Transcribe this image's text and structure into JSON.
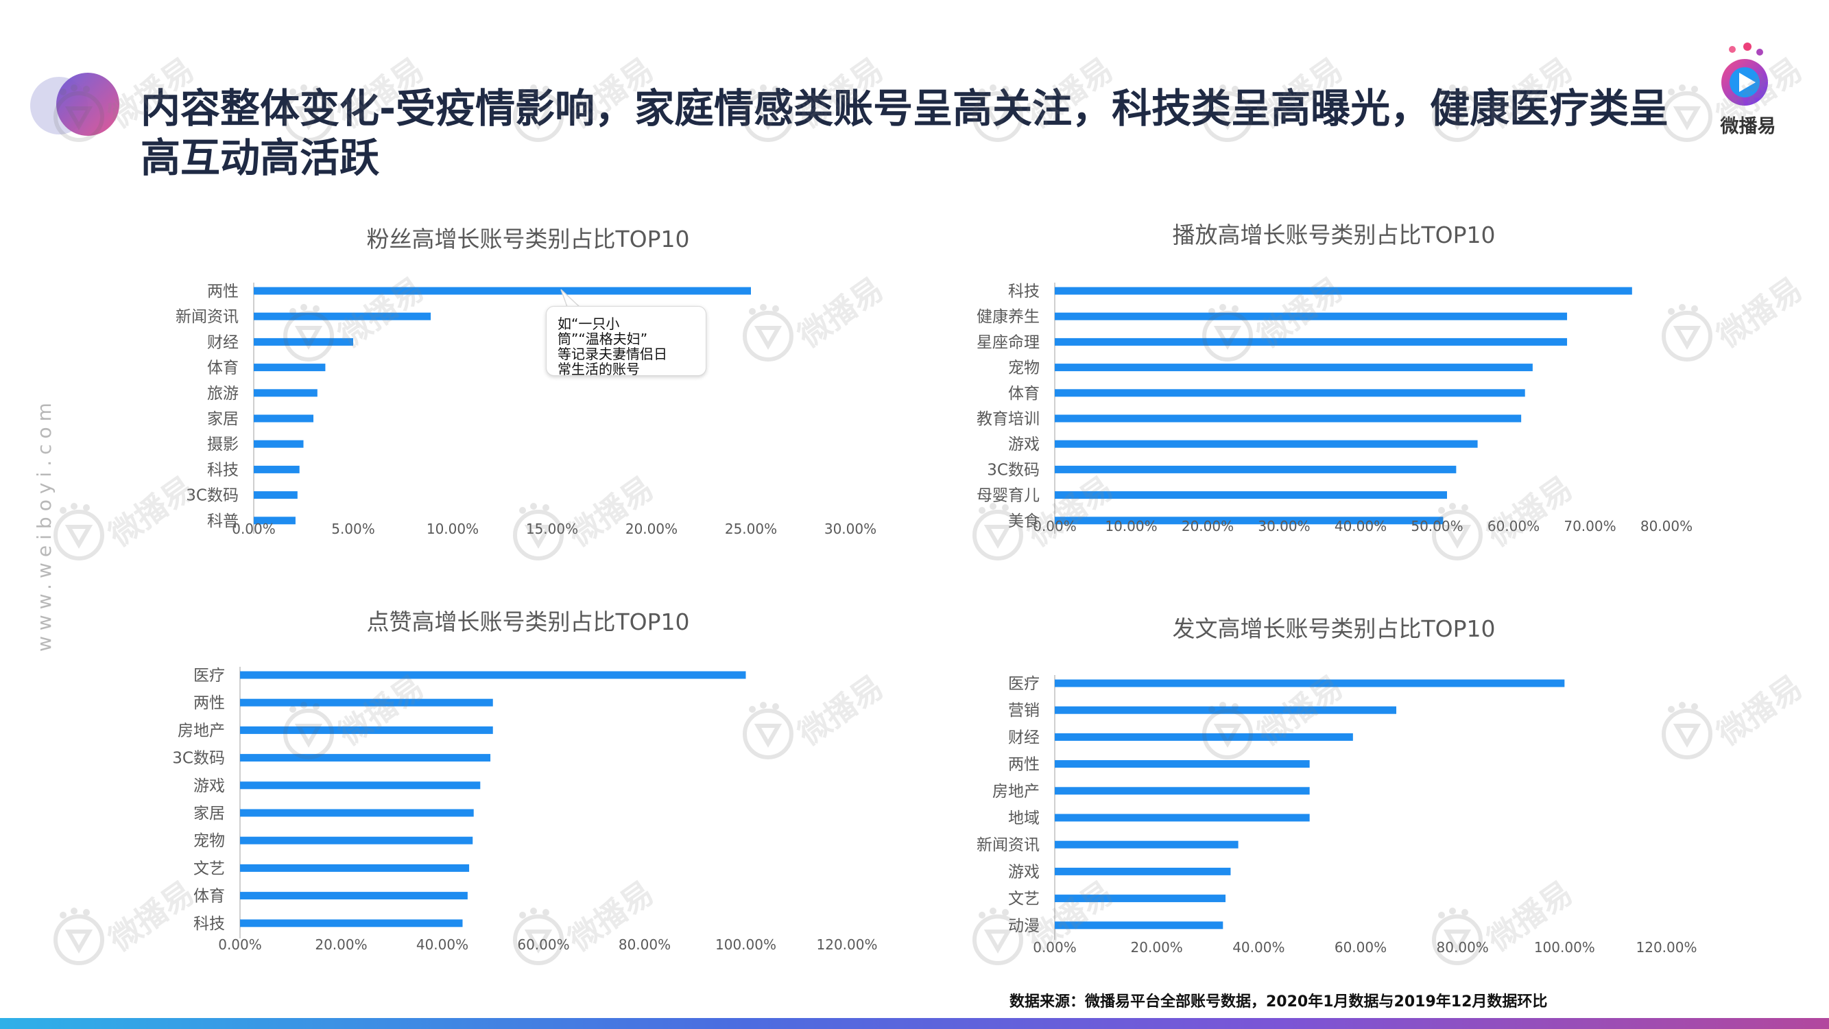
{
  "header": {
    "title": "内容整体变化-受疫情影响，家庭情感类账号呈高关注，科技类呈高曝光，健康医疗类呈高互动高活跃",
    "logo_text": "微播易"
  },
  "side_url": "www.weiboyi.com",
  "watermark_text": "微播易",
  "colors": {
    "bar": "#1e8cf0",
    "title": "#1f2a44"
  },
  "callout": {
    "lines": [
      "如“一只小",
      "筒”“温格夫妇”",
      "等记录夫妻情侣日",
      "常生活的账号"
    ]
  },
  "source_note": "数据来源：微播易平台全部账号数据，2020年1月数据与2019年12月数据环比",
  "chart_data": [
    {
      "type": "bar",
      "orientation": "horizontal",
      "title": "粉丝高增长账号类别占比TOP10",
      "categories": [
        "两性",
        "新闻资讯",
        "财经",
        "体育",
        "旅游",
        "家居",
        "摄影",
        "科技",
        "3C数码",
        "科普"
      ],
      "values": [
        25.0,
        8.9,
        5.0,
        3.6,
        3.2,
        3.0,
        2.5,
        2.3,
        2.2,
        2.1
      ],
      "xlim": [
        0,
        30
      ],
      "ticks": [
        "0.00%",
        "5.00%",
        "10.00%",
        "15.00%",
        "20.00%",
        "25.00%",
        "30.00%"
      ],
      "grid": false
    },
    {
      "type": "bar",
      "orientation": "horizontal",
      "title": "播放高增长账号类别占比TOP10",
      "categories": [
        "科技",
        "健康养生",
        "星座命理",
        "宠物",
        "体育",
        "教育培训",
        "游戏",
        "3C数码",
        "母婴育儿",
        "美食"
      ],
      "values": [
        75.5,
        67.0,
        67.0,
        62.5,
        61.5,
        61.0,
        55.3,
        52.5,
        51.3,
        50.8
      ],
      "xlim": [
        0,
        80
      ],
      "ticks": [
        "0.00%",
        "10.00%",
        "20.00%",
        "30.00%",
        "40.00%",
        "50.00%",
        "60.00%",
        "70.00%",
        "80.00%"
      ],
      "grid": false
    },
    {
      "type": "bar",
      "orientation": "horizontal",
      "title": "点赞高增长账号类别占比TOP10",
      "categories": [
        "医疗",
        "两性",
        "房地产",
        "3C数码",
        "游戏",
        "家居",
        "宠物",
        "文艺",
        "体育",
        "科技"
      ],
      "values": [
        100.0,
        50.0,
        50.0,
        49.5,
        47.5,
        46.2,
        46.0,
        45.3,
        45.0,
        44.0
      ],
      "xlim": [
        0,
        120
      ],
      "ticks": [
        "0.00%",
        "20.00%",
        "40.00%",
        "60.00%",
        "80.00%",
        "100.00%",
        "120.00%"
      ],
      "grid": false
    },
    {
      "type": "bar",
      "orientation": "horizontal",
      "title": "发文高增长账号类别占比TOP10",
      "categories": [
        "医疗",
        "营销",
        "财经",
        "两性",
        "房地产",
        "地域",
        "新闻资讯",
        "游戏",
        "文艺",
        "动漫"
      ],
      "values": [
        100.0,
        67.0,
        58.5,
        50.0,
        50.0,
        50.0,
        36.0,
        34.5,
        33.5,
        33.0
      ],
      "xlim": [
        0,
        120
      ],
      "ticks": [
        "0.00%",
        "20.00%",
        "40.00%",
        "60.00%",
        "80.00%",
        "100.00%",
        "120.00%"
      ],
      "grid": false
    }
  ]
}
